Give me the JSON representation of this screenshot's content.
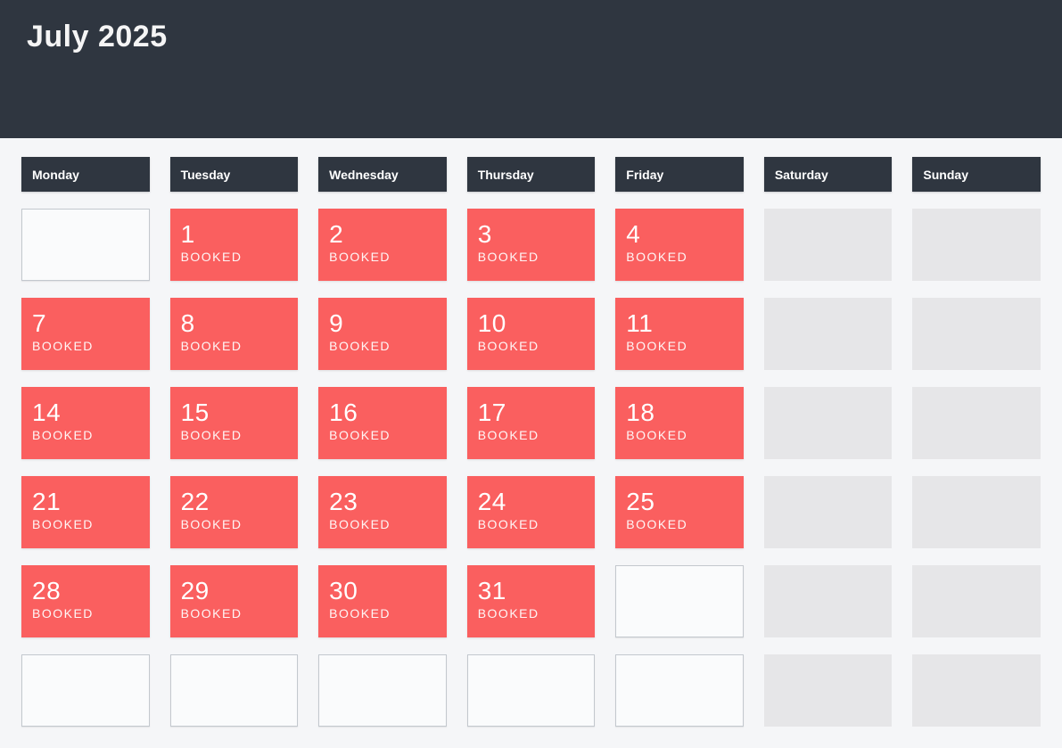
{
  "header": {
    "title": "July 2025"
  },
  "colors": {
    "header_bg": "#2f3640",
    "booked_bg": "#fa5f5f",
    "weekend_bg": "#e6e6e8",
    "page_bg": "#f5f6f8",
    "booked_text": "#ffffff"
  },
  "calendar": {
    "weekday_headers": [
      "Monday",
      "Tuesday",
      "Wednesday",
      "Thursday",
      "Friday",
      "Saturday",
      "Sunday"
    ],
    "booked_label": "BOOKED",
    "weeks": [
      [
        {
          "type": "empty"
        },
        {
          "type": "booked",
          "day": "1"
        },
        {
          "type": "booked",
          "day": "2"
        },
        {
          "type": "booked",
          "day": "3"
        },
        {
          "type": "booked",
          "day": "4"
        },
        {
          "type": "weekend"
        },
        {
          "type": "weekend"
        }
      ],
      [
        {
          "type": "booked",
          "day": "7"
        },
        {
          "type": "booked",
          "day": "8"
        },
        {
          "type": "booked",
          "day": "9"
        },
        {
          "type": "booked",
          "day": "10"
        },
        {
          "type": "booked",
          "day": "11"
        },
        {
          "type": "weekend"
        },
        {
          "type": "weekend"
        }
      ],
      [
        {
          "type": "booked",
          "day": "14"
        },
        {
          "type": "booked",
          "day": "15"
        },
        {
          "type": "booked",
          "day": "16"
        },
        {
          "type": "booked",
          "day": "17"
        },
        {
          "type": "booked",
          "day": "18"
        },
        {
          "type": "weekend"
        },
        {
          "type": "weekend"
        }
      ],
      [
        {
          "type": "booked",
          "day": "21"
        },
        {
          "type": "booked",
          "day": "22"
        },
        {
          "type": "booked",
          "day": "23"
        },
        {
          "type": "booked",
          "day": "24"
        },
        {
          "type": "booked",
          "day": "25"
        },
        {
          "type": "weekend"
        },
        {
          "type": "weekend"
        }
      ],
      [
        {
          "type": "booked",
          "day": "28"
        },
        {
          "type": "booked",
          "day": "29"
        },
        {
          "type": "booked",
          "day": "30"
        },
        {
          "type": "booked",
          "day": "31"
        },
        {
          "type": "empty"
        },
        {
          "type": "weekend"
        },
        {
          "type": "weekend"
        }
      ],
      [
        {
          "type": "empty"
        },
        {
          "type": "empty"
        },
        {
          "type": "empty"
        },
        {
          "type": "empty"
        },
        {
          "type": "empty"
        },
        {
          "type": "weekend"
        },
        {
          "type": "weekend"
        }
      ]
    ]
  }
}
